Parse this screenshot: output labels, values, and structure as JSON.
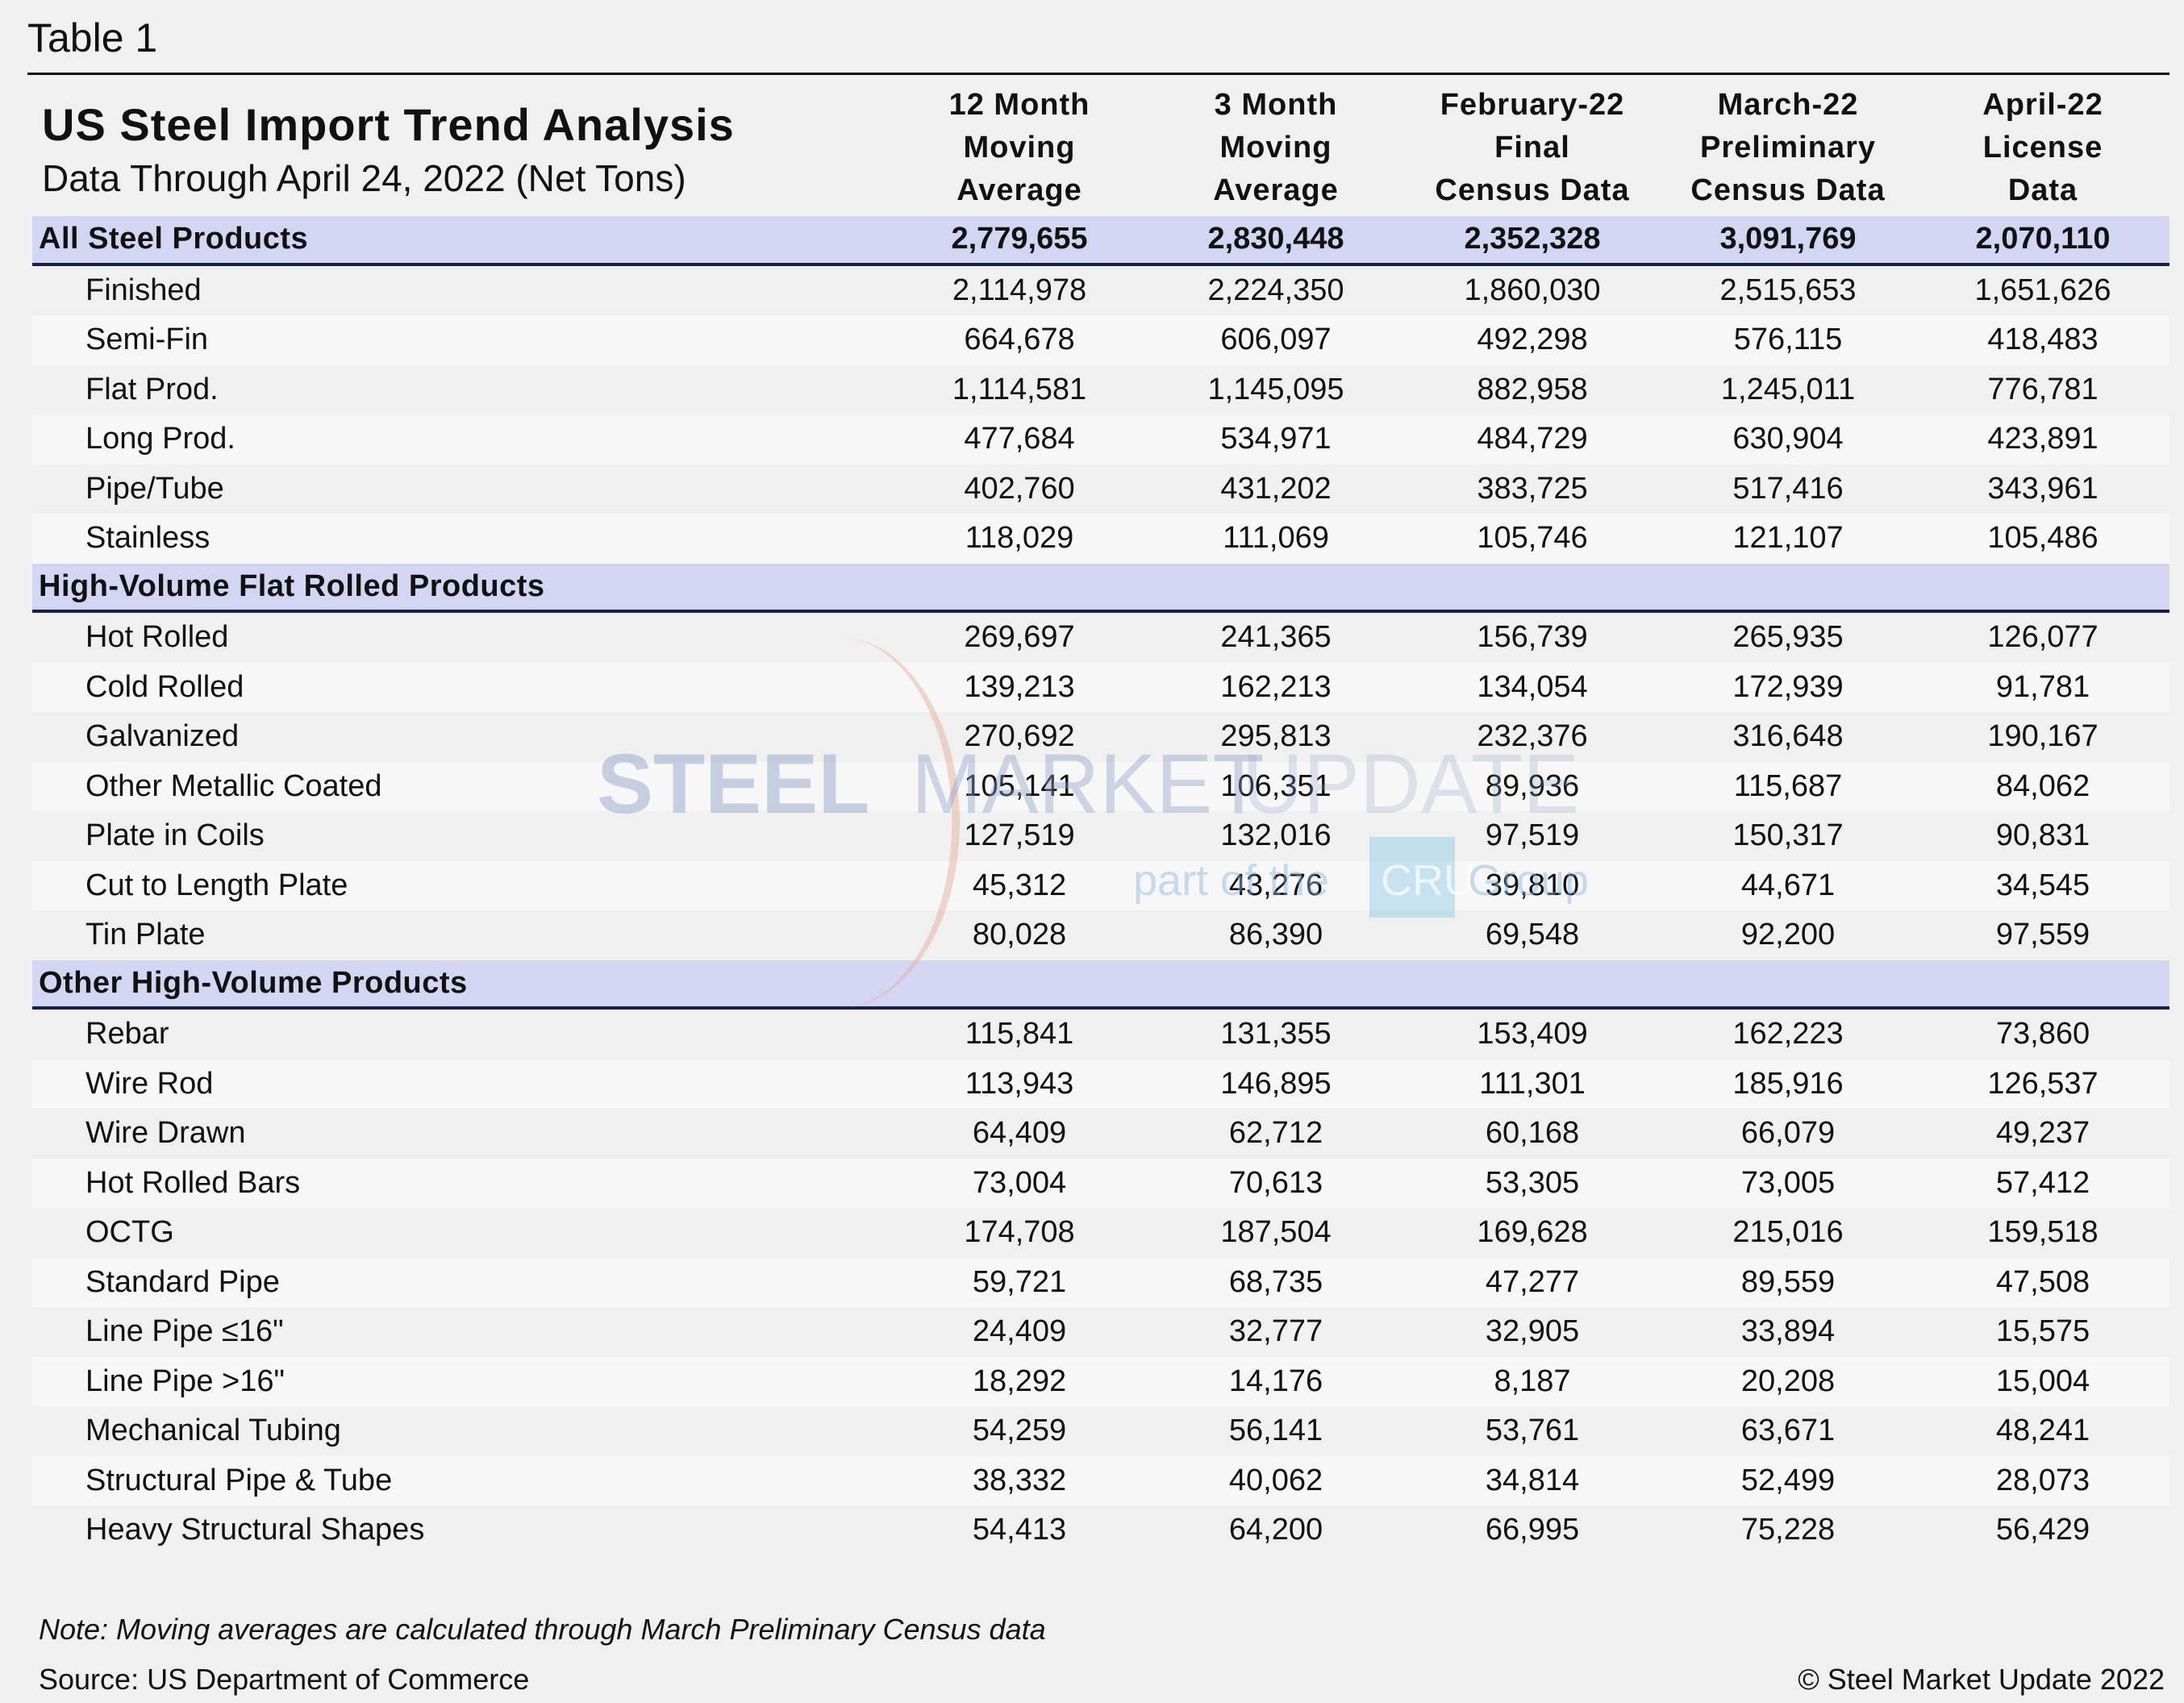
{
  "table_label": "Table 1",
  "title": "US Steel Import Trend Analysis",
  "subtitle": "Data Through April 24, 2022 (Net Tons)",
  "columns": [
    [
      "12 Month",
      "Moving",
      "Average"
    ],
    [
      "3 Month",
      "Moving",
      "Average"
    ],
    [
      "February-22",
      "Final",
      "Census Data"
    ],
    [
      "March-22",
      "Preliminary",
      "Census Data"
    ],
    [
      "April-22",
      "License",
      "Data"
    ]
  ],
  "sections": [
    {
      "label": "All Steel Products",
      "values": [
        "2,779,655",
        "2,830,448",
        "2,352,328",
        "3,091,769",
        "2,070,110"
      ],
      "rows": [
        {
          "label": "Finished",
          "values": [
            "2,114,978",
            "2,224,350",
            "1,860,030",
            "2,515,653",
            "1,651,626"
          ]
        },
        {
          "label": "Semi-Fin",
          "values": [
            "664,678",
            "606,097",
            "492,298",
            "576,115",
            "418,483"
          ]
        },
        {
          "label": "Flat Prod.",
          "values": [
            "1,114,581",
            "1,145,095",
            "882,958",
            "1,245,011",
            "776,781"
          ]
        },
        {
          "label": "Long Prod.",
          "values": [
            "477,684",
            "534,971",
            "484,729",
            "630,904",
            "423,891"
          ]
        },
        {
          "label": "Pipe/Tube",
          "values": [
            "402,760",
            "431,202",
            "383,725",
            "517,416",
            "343,961"
          ]
        },
        {
          "label": "Stainless",
          "values": [
            "118,029",
            "111,069",
            "105,746",
            "121,107",
            "105,486"
          ]
        }
      ]
    },
    {
      "label": "High-Volume Flat Rolled Products",
      "values": [],
      "rows": [
        {
          "label": "Hot Rolled",
          "values": [
            "269,697",
            "241,365",
            "156,739",
            "265,935",
            "126,077"
          ]
        },
        {
          "label": "Cold Rolled",
          "values": [
            "139,213",
            "162,213",
            "134,054",
            "172,939",
            "91,781"
          ]
        },
        {
          "label": "Galvanized",
          "values": [
            "270,692",
            "295,813",
            "232,376",
            "316,648",
            "190,167"
          ]
        },
        {
          "label": "Other Metallic Coated",
          "values": [
            "105,141",
            "106,351",
            "89,936",
            "115,687",
            "84,062"
          ]
        },
        {
          "label": "Plate in Coils",
          "values": [
            "127,519",
            "132,016",
            "97,519",
            "150,317",
            "90,831"
          ]
        },
        {
          "label": "Cut to Length Plate",
          "values": [
            "45,312",
            "43,276",
            "39,810",
            "44,671",
            "34,545"
          ]
        },
        {
          "label": "Tin Plate",
          "values": [
            "80,028",
            "86,390",
            "69,548",
            "92,200",
            "97,559"
          ]
        }
      ]
    },
    {
      "label": "Other High-Volume Products",
      "values": [],
      "rows": [
        {
          "label": "Rebar",
          "values": [
            "115,841",
            "131,355",
            "153,409",
            "162,223",
            "73,860"
          ]
        },
        {
          "label": "Wire Rod",
          "values": [
            "113,943",
            "146,895",
            "111,301",
            "185,916",
            "126,537"
          ]
        },
        {
          "label": "Wire Drawn",
          "values": [
            "64,409",
            "62,712",
            "60,168",
            "66,079",
            "49,237"
          ]
        },
        {
          "label": "Hot Rolled Bars",
          "values": [
            "73,004",
            "70,613",
            "53,305",
            "73,005",
            "57,412"
          ]
        },
        {
          "label": "OCTG",
          "values": [
            "174,708",
            "187,504",
            "169,628",
            "215,016",
            "159,518"
          ]
        },
        {
          "label": "Standard Pipe",
          "values": [
            "59,721",
            "68,735",
            "47,277",
            "89,559",
            "47,508"
          ]
        },
        {
          "label": "Line Pipe ≤16\"",
          "values": [
            "24,409",
            "32,777",
            "32,905",
            "33,894",
            "15,575"
          ]
        },
        {
          "label": "Line Pipe >16\"",
          "values": [
            "18,292",
            "14,176",
            "8,187",
            "20,208",
            "15,004"
          ]
        },
        {
          "label": "Mechanical Tubing",
          "values": [
            "54,259",
            "56,141",
            "53,761",
            "63,671",
            "48,241"
          ]
        },
        {
          "label": "Structural Pipe & Tube",
          "values": [
            "38,332",
            "40,062",
            "34,814",
            "52,499",
            "28,073"
          ]
        },
        {
          "label": "Heavy Structural Shapes",
          "values": [
            "54,413",
            "64,200",
            "66,995",
            "75,228",
            "56,429"
          ]
        }
      ]
    }
  ],
  "note": "Note: Moving averages are calculated through March Preliminary Census data",
  "source": "Source: US Department of Commerce",
  "copyright": "© Steel Market Update 2022",
  "watermark": {
    "line1a": "STEEL",
    "line1b": "MARKET",
    "line1c": "UPDATE",
    "line2a": "part of the",
    "line2b": "CRU",
    "line2c": "Group"
  },
  "colors": {
    "section_bg": "#d3d6f3",
    "section_rule": "#1a1f4a",
    "row_alt": "#f7f7f7",
    "background": "#f0f0f0"
  }
}
